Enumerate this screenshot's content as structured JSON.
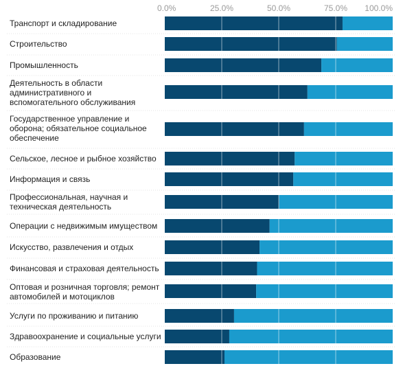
{
  "colors": {
    "series_a": "#08486f",
    "series_b": "#1b9bcd"
  },
  "chart_data": {
    "type": "bar",
    "orientation": "horizontal",
    "stacked": true,
    "xlim": [
      0,
      100
    ],
    "x_ticks": [
      "0.0%",
      "25.0%",
      "50.0%",
      "75.0%",
      "100.0%"
    ],
    "tick_values": [
      0,
      25,
      50,
      75,
      100
    ],
    "categories": [
      "Транспорт и складирование",
      "Строительство",
      "Промышленность",
      "Деятельность в области административного и вспомогательного обслуживания",
      "Государственное управление и оборона; обязательное социальное обеспечение",
      "Сельское, лесное и рыбное хозяйство",
      "Информация и связь",
      "Профессиональная, научная и техническая деятельность",
      "Операции с недвижимым имуществом",
      "Искусство, развлечения и отдых",
      "Финансовая и страховая деятельность",
      "Оптовая и розничная торговля; ремонт автомобилей и мотоциклов",
      "Услуги по проживанию и питанию",
      "Здравоохранение и социальные услуги",
      "Образование"
    ],
    "series": [
      {
        "values": [
          78.0,
          75.5,
          68.7,
          62.6,
          61.1,
          57.0,
          56.4,
          50.1,
          46.0,
          41.6,
          40.5,
          40.1,
          30.4,
          28.3,
          26.2
        ]
      },
      {
        "values": [
          22.0,
          24.5,
          31.3,
          37.4,
          38.9,
          43.0,
          43.6,
          49.9,
          54.0,
          58.4,
          59.5,
          59.9,
          69.6,
          71.7,
          73.8
        ]
      }
    ],
    "grid": true,
    "legend": "none"
  }
}
